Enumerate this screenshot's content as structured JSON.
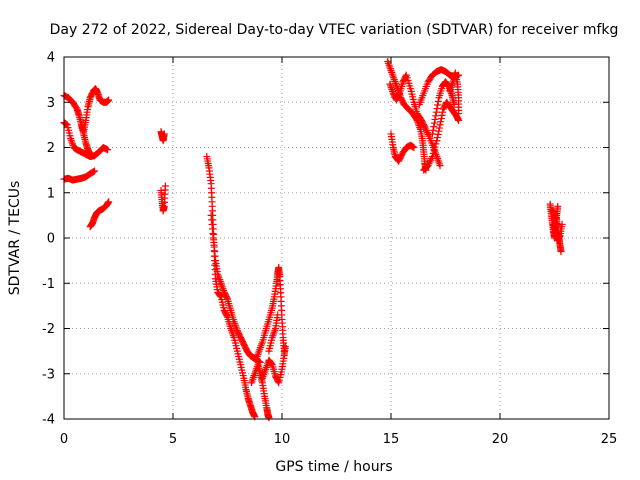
{
  "chart_data": {
    "type": "scatter",
    "title": "Day 272 of 2022, Sidereal Day-to-day VTEC variation (SDTVAR) for receiver mfkg",
    "xlabel": "GPS time / hours",
    "ylabel": "SDTVAR / TECUs",
    "xlim": [
      0,
      25
    ],
    "ylim": [
      -4,
      4
    ],
    "xticks": [
      0,
      5,
      10,
      15,
      20,
      25
    ],
    "yticks": [
      -4,
      -3,
      -2,
      -1,
      0,
      1,
      2,
      3,
      4
    ],
    "xtick_labels": [
      "0",
      "5",
      "10",
      "15",
      "20",
      "25"
    ],
    "ytick_labels": [
      "-4",
      "-3",
      "-2",
      "-1",
      "0",
      "1",
      "2",
      "3",
      "4"
    ],
    "grid": true,
    "marker": "+",
    "series": [
      {
        "name": "mfkg",
        "color": "#ff0000",
        "segments": [
          [
            [
              0.0,
              3.15
            ],
            [
              0.2,
              3.1
            ],
            [
              0.4,
              3.0
            ],
            [
              0.6,
              2.85
            ],
            [
              0.7,
              2.7
            ],
            [
              0.8,
              2.5
            ],
            [
              0.9,
              2.35
            ],
            [
              1.0,
              2.6
            ],
            [
              1.1,
              2.9
            ],
            [
              1.2,
              3.1
            ],
            [
              1.35,
              3.25
            ],
            [
              1.45,
              3.3
            ],
            [
              1.55,
              3.2
            ],
            [
              1.65,
              3.05
            ],
            [
              1.8,
              3.0
            ],
            [
              1.95,
              3.0
            ],
            [
              2.05,
              3.05
            ]
          ],
          [
            [
              0.0,
              2.55
            ],
            [
              0.15,
              2.5
            ],
            [
              0.3,
              2.2
            ],
            [
              0.45,
              2.0
            ],
            [
              0.6,
              1.95
            ],
            [
              0.8,
              1.9
            ],
            [
              1.0,
              1.85
            ],
            [
              1.2,
              1.8
            ],
            [
              1.4,
              1.82
            ],
            [
              1.6,
              1.9
            ],
            [
              1.8,
              2.0
            ],
            [
              2.0,
              1.95
            ]
          ],
          [
            [
              0.8,
              2.5
            ],
            [
              0.9,
              2.3
            ],
            [
              1.0,
              2.1
            ],
            [
              1.1,
              1.95
            ],
            [
              1.2,
              1.85
            ]
          ],
          [
            [
              0.0,
              1.3
            ],
            [
              0.2,
              1.32
            ],
            [
              0.4,
              1.28
            ],
            [
              0.6,
              1.3
            ],
            [
              0.8,
              1.32
            ],
            [
              1.0,
              1.35
            ],
            [
              1.2,
              1.42
            ],
            [
              1.4,
              1.48
            ]
          ],
          [
            [
              1.2,
              0.25
            ],
            [
              1.3,
              0.32
            ],
            [
              1.4,
              0.45
            ],
            [
              1.5,
              0.55
            ],
            [
              1.6,
              0.6
            ],
            [
              1.8,
              0.65
            ],
            [
              1.95,
              0.72
            ],
            [
              2.05,
              0.8
            ]
          ],
          [
            [
              4.45,
              2.35
            ],
            [
              4.5,
              2.25
            ],
            [
              4.55,
              2.15
            ],
            [
              4.6,
              2.3
            ]
          ],
          [
            [
              4.45,
              1.05
            ],
            [
              4.5,
              0.8
            ],
            [
              4.55,
              0.6
            ],
            [
              4.6,
              0.7
            ],
            [
              4.65,
              1.15
            ]
          ],
          [
            [
              6.55,
              1.8
            ],
            [
              6.65,
              1.55
            ],
            [
              6.75,
              1.2
            ],
            [
              6.8,
              0.7
            ],
            [
              6.85,
              0.2
            ],
            [
              6.9,
              -0.4
            ],
            [
              6.95,
              -0.9
            ],
            [
              7.05,
              -1.2
            ],
            [
              7.2,
              -1.3
            ],
            [
              7.35,
              -1.6
            ],
            [
              7.5,
              -1.75
            ],
            [
              7.65,
              -2.0
            ],
            [
              7.8,
              -2.2
            ],
            [
              7.95,
              -2.5
            ],
            [
              8.1,
              -2.8
            ],
            [
              8.25,
              -3.1
            ],
            [
              8.35,
              -3.35
            ],
            [
              8.45,
              -3.55
            ],
            [
              8.55,
              -3.7
            ],
            [
              8.65,
              -3.85
            ],
            [
              8.75,
              -3.95
            ]
          ],
          [
            [
              6.75,
              0.5
            ],
            [
              6.85,
              0.0
            ],
            [
              6.95,
              -0.5
            ],
            [
              7.05,
              -0.8
            ],
            [
              7.2,
              -1.0
            ],
            [
              7.35,
              -1.2
            ],
            [
              7.5,
              -1.35
            ],
            [
              7.65,
              -1.6
            ],
            [
              7.8,
              -1.85
            ],
            [
              7.95,
              -2.05
            ],
            [
              8.1,
              -2.2
            ],
            [
              8.25,
              -2.35
            ],
            [
              8.4,
              -2.5
            ],
            [
              8.55,
              -2.6
            ],
            [
              8.7,
              -2.65
            ],
            [
              8.85,
              -2.7
            ],
            [
              9.0,
              -2.75
            ]
          ],
          [
            [
              8.6,
              -3.2
            ],
            [
              8.75,
              -3.0
            ],
            [
              8.9,
              -2.8
            ],
            [
              9.0,
              -3.0
            ],
            [
              9.1,
              -3.2
            ],
            [
              9.2,
              -3.5
            ],
            [
              9.3,
              -3.75
            ],
            [
              9.35,
              -3.9
            ],
            [
              9.4,
              -3.97
            ]
          ],
          [
            [
              8.8,
              -2.7
            ],
            [
              8.95,
              -2.5
            ],
            [
              9.1,
              -2.3
            ],
            [
              9.25,
              -2.05
            ],
            [
              9.4,
              -1.8
            ],
            [
              9.55,
              -1.55
            ],
            [
              9.65,
              -1.3
            ],
            [
              9.75,
              -1.0
            ],
            [
              9.8,
              -0.8
            ],
            [
              9.85,
              -0.65
            ],
            [
              9.9,
              -0.85
            ],
            [
              9.95,
              -1.3
            ],
            [
              10.0,
              -1.8
            ],
            [
              10.05,
              -2.2
            ],
            [
              10.1,
              -2.5
            ]
          ],
          [
            [
              9.1,
              -3.1
            ],
            [
              9.25,
              -2.9
            ],
            [
              9.4,
              -2.7
            ],
            [
              9.55,
              -2.8
            ],
            [
              9.7,
              -3.05
            ],
            [
              9.85,
              -3.2
            ],
            [
              10.0,
              -2.9
            ],
            [
              10.1,
              -2.6
            ],
            [
              10.15,
              -2.4
            ]
          ],
          [
            [
              9.4,
              -2.5
            ],
            [
              9.55,
              -2.2
            ],
            [
              9.7,
              -2.0
            ],
            [
              9.8,
              -1.7
            ]
          ],
          [
            [
              14.85,
              3.9
            ],
            [
              15.0,
              3.7
            ],
            [
              15.15,
              3.5
            ],
            [
              15.3,
              3.3
            ],
            [
              15.45,
              3.1
            ],
            [
              15.6,
              2.95
            ],
            [
              15.8,
              2.85
            ],
            [
              16.0,
              2.75
            ],
            [
              16.2,
              2.6
            ],
            [
              16.35,
              2.4
            ],
            [
              16.45,
              2.15
            ],
            [
              16.5,
              1.9
            ],
            [
              16.55,
              1.65
            ],
            [
              16.6,
              1.5
            ]
          ],
          [
            [
              14.95,
              3.4
            ],
            [
              15.1,
              3.2
            ],
            [
              15.25,
              3.05
            ],
            [
              15.4,
              3.2
            ],
            [
              15.55,
              3.45
            ],
            [
              15.7,
              3.6
            ],
            [
              15.9,
              3.3
            ],
            [
              16.05,
              3.0
            ],
            [
              16.2,
              2.75
            ],
            [
              16.4,
              2.6
            ],
            [
              16.55,
              2.45
            ],
            [
              16.75,
              2.25
            ],
            [
              16.95,
              2.0
            ],
            [
              17.1,
              1.8
            ],
            [
              17.25,
              1.6
            ]
          ],
          [
            [
              15.0,
              2.3
            ],
            [
              15.1,
              2.0
            ],
            [
              15.2,
              1.8
            ],
            [
              15.35,
              1.7
            ],
            [
              15.5,
              1.85
            ],
            [
              15.7,
              2.0
            ],
            [
              15.9,
              2.05
            ],
            [
              16.05,
              2.0
            ]
          ],
          [
            [
              16.5,
              1.5
            ],
            [
              16.7,
              1.6
            ],
            [
              16.9,
              1.8
            ],
            [
              17.1,
              2.15
            ],
            [
              17.25,
              2.5
            ],
            [
              17.4,
              2.85
            ],
            [
              17.55,
              3.0
            ],
            [
              17.7,
              2.9
            ],
            [
              17.85,
              2.8
            ],
            [
              18.0,
              2.7
            ],
            [
              18.1,
              2.6
            ]
          ],
          [
            [
              16.3,
              2.95
            ],
            [
              16.5,
              3.2
            ],
            [
              16.7,
              3.45
            ],
            [
              16.9,
              3.6
            ],
            [
              17.1,
              3.68
            ],
            [
              17.3,
              3.72
            ],
            [
              17.5,
              3.68
            ],
            [
              17.7,
              3.6
            ],
            [
              17.9,
              3.55
            ],
            [
              18.1,
              3.6
            ]
          ],
          [
            [
              16.9,
              2.3
            ],
            [
              17.05,
              2.7
            ],
            [
              17.2,
              3.1
            ],
            [
              17.35,
              3.35
            ],
            [
              17.5,
              3.45
            ],
            [
              17.65,
              3.35
            ],
            [
              17.8,
              3.15
            ],
            [
              17.9,
              2.95
            ]
          ],
          [
            [
              17.7,
              3.25
            ],
            [
              17.85,
              3.45
            ],
            [
              17.95,
              3.65
            ],
            [
              18.05,
              3.4
            ],
            [
              18.1,
              3.1
            ],
            [
              18.1,
              2.75
            ]
          ],
          [
            [
              22.3,
              0.75
            ],
            [
              22.35,
              0.55
            ],
            [
              22.4,
              0.35
            ],
            [
              22.45,
              0.15
            ],
            [
              22.5,
              0.0
            ],
            [
              22.55,
              0.25
            ],
            [
              22.6,
              0.5
            ],
            [
              22.65,
              0.7
            ]
          ],
          [
            [
              22.4,
              0.6
            ],
            [
              22.5,
              0.55
            ],
            [
              22.6,
              0.4
            ],
            [
              22.65,
              0.2
            ],
            [
              22.7,
              0.0
            ],
            [
              22.75,
              -0.15
            ],
            [
              22.8,
              -0.3
            ]
          ],
          [
            [
              22.45,
              0.3
            ],
            [
              22.55,
              0.15
            ],
            [
              22.65,
              -0.05
            ],
            [
              22.75,
              0.05
            ],
            [
              22.85,
              0.3
            ]
          ]
        ]
      }
    ]
  }
}
